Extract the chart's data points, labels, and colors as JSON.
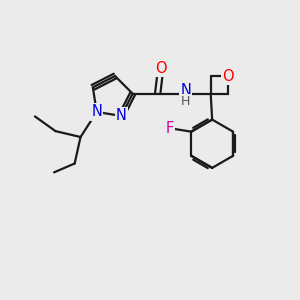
{
  "bg_color": "#ebebeb",
  "bond_color": "#1a1a1a",
  "bond_width": 1.6,
  "atom_colors": {
    "O": "#ff0000",
    "N": "#0000dd",
    "F": "#cc00aa",
    "H": "#555555",
    "C": "#1a1a1a"
  },
  "font_size": 10.5,
  "fig_size": [
    3.0,
    3.0
  ],
  "dpi": 100
}
